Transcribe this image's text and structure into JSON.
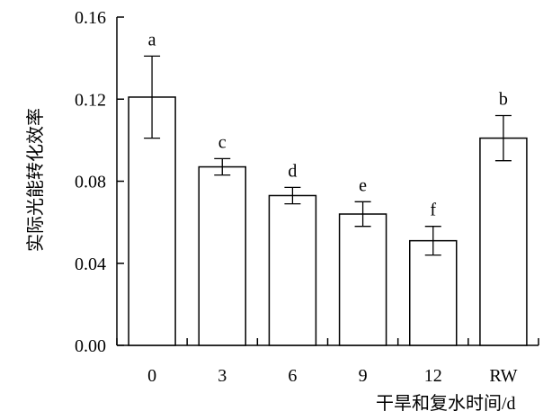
{
  "chart_data": {
    "type": "bar",
    "categories": [
      "0",
      "3",
      "6",
      "9",
      "12",
      "RW"
    ],
    "values": [
      0.121,
      0.087,
      0.073,
      0.064,
      0.051,
      0.101
    ],
    "errors": [
      0.02,
      0.004,
      0.004,
      0.006,
      0.007,
      0.011
    ],
    "significance": [
      "a",
      "c",
      "d",
      "e",
      "f",
      "b"
    ],
    "xlabel": "干旱和复水时间/d",
    "ylabel": "实际光能转化效率",
    "ylim": [
      0,
      0.16
    ],
    "yticks": [
      0,
      0.04,
      0.08,
      0.12,
      0.16
    ],
    "ytick_labels": [
      "0.00",
      "0.04",
      "0.08",
      "0.12",
      "0.16"
    ],
    "grid": false,
    "bar_fill": "#ffffff",
    "bar_stroke": "#000000"
  }
}
